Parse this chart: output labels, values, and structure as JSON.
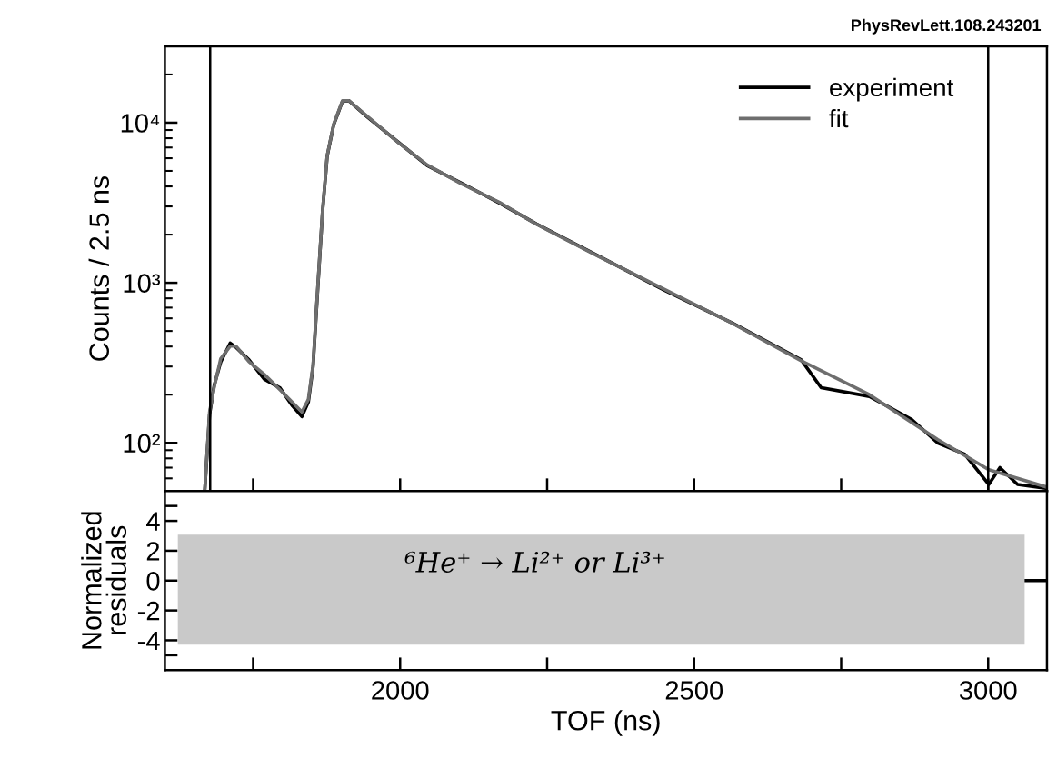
{
  "chart_data": [
    {
      "type": "line",
      "ylabel": "Counts / 2.5 ns",
      "log": true,
      "xlim": [
        1600,
        3100
      ],
      "ylim": [
        50,
        30000
      ],
      "xticks": [
        {
          "value": 1750,
          "label": null
        },
        {
          "value": 2000,
          "label": null
        },
        {
          "value": 2250,
          "label": null
        },
        {
          "value": 2500,
          "label": null
        },
        {
          "value": 2750,
          "label": null
        },
        {
          "value": 3000,
          "label": null
        }
      ],
      "yticks": [
        {
          "value": 100,
          "label": "10²"
        },
        {
          "value": 1000,
          "label": "10³"
        },
        {
          "value": 10000,
          "label": "10⁴"
        }
      ],
      "tick_labels": "y",
      "legend": "top right",
      "grid": false,
      "series": [
        {
          "name": "experiment",
          "color": "#000000",
          "x": [
            1668,
            1676,
            1684,
            1695,
            1711,
            1721,
            1743,
            1769,
            1796,
            1817,
            1833,
            1844,
            1852,
            1860,
            1868,
            1876,
            1887,
            1902,
            1913,
            1945,
            1998,
            2046,
            2104,
            2169,
            2232,
            2333,
            2449,
            2565,
            2682,
            2716,
            2798,
            2870,
            2914,
            2960,
            3001,
            3020,
            3050,
            3099
          ],
          "values": [
            52,
            150,
            230,
            320,
            420,
            395,
            330,
            250,
            220,
            170,
            146,
            180,
            300,
            930,
            2750,
            6200,
            9700,
            13600,
            13700,
            10800,
            7500,
            5400,
            4200,
            3150,
            2330,
            1500,
            900,
            560,
            330,
            221,
            195,
            140,
            100,
            85,
            55,
            70,
            55,
            52
          ]
        },
        {
          "name": "fit",
          "color": "#6e6e6e",
          "x": [
            1668,
            1676,
            1684,
            1695,
            1711,
            1721,
            1743,
            1769,
            1796,
            1817,
            1833,
            1844,
            1852,
            1860,
            1868,
            1876,
            1887,
            1902,
            1913,
            1945,
            1998,
            2046,
            2104,
            2169,
            2232,
            2333,
            2449,
            2565,
            2682,
            2798,
            2914,
            3001,
            3050,
            3099
          ],
          "values": [
            52,
            156,
            224,
            336,
            402,
            402,
            322,
            268,
            214,
            179,
            156,
            187,
            307,
            944,
            2780,
            6240,
            9770,
            13700,
            13700,
            10900,
            7460,
            5450,
            4160,
            3180,
            2320,
            1490,
            912,
            558,
            326,
            200,
            105,
            68,
            60,
            53
          ]
        }
      ],
      "ref_lines": [
        {
          "axis": "x",
          "value": 1677,
          "label": null,
          "color": "#000000"
        },
        {
          "axis": "x",
          "value": 3000,
          "label": null,
          "color": "#000000"
        }
      ],
      "annotations": [
        "PhysRevLett.108.243201"
      ]
    },
    {
      "type": "line",
      "xlabel": "TOF (ns)",
      "ylabel": "Normalized\nresiduals",
      "xlim": [
        1600,
        3100
      ],
      "ylim": [
        -6,
        6
      ],
      "xticks": [
        {
          "value": 1750,
          "label": null
        },
        2000,
        {
          "value": 2250,
          "label": null
        },
        2500,
        {
          "value": 2750,
          "label": null
        },
        3000
      ],
      "yticks": [
        {
          "value": -5,
          "label": null
        },
        -4,
        -2,
        0,
        2,
        4,
        {
          "value": 5,
          "label": null
        }
      ],
      "grid": false,
      "series": [
        {
          "color": "#000000",
          "x": [
            3063,
            3100
          ],
          "values": [
            0,
            0
          ]
        }
      ],
      "annotations": [
        "⁶He⁺ → Li²⁺ or Li³⁺"
      ]
    }
  ]
}
